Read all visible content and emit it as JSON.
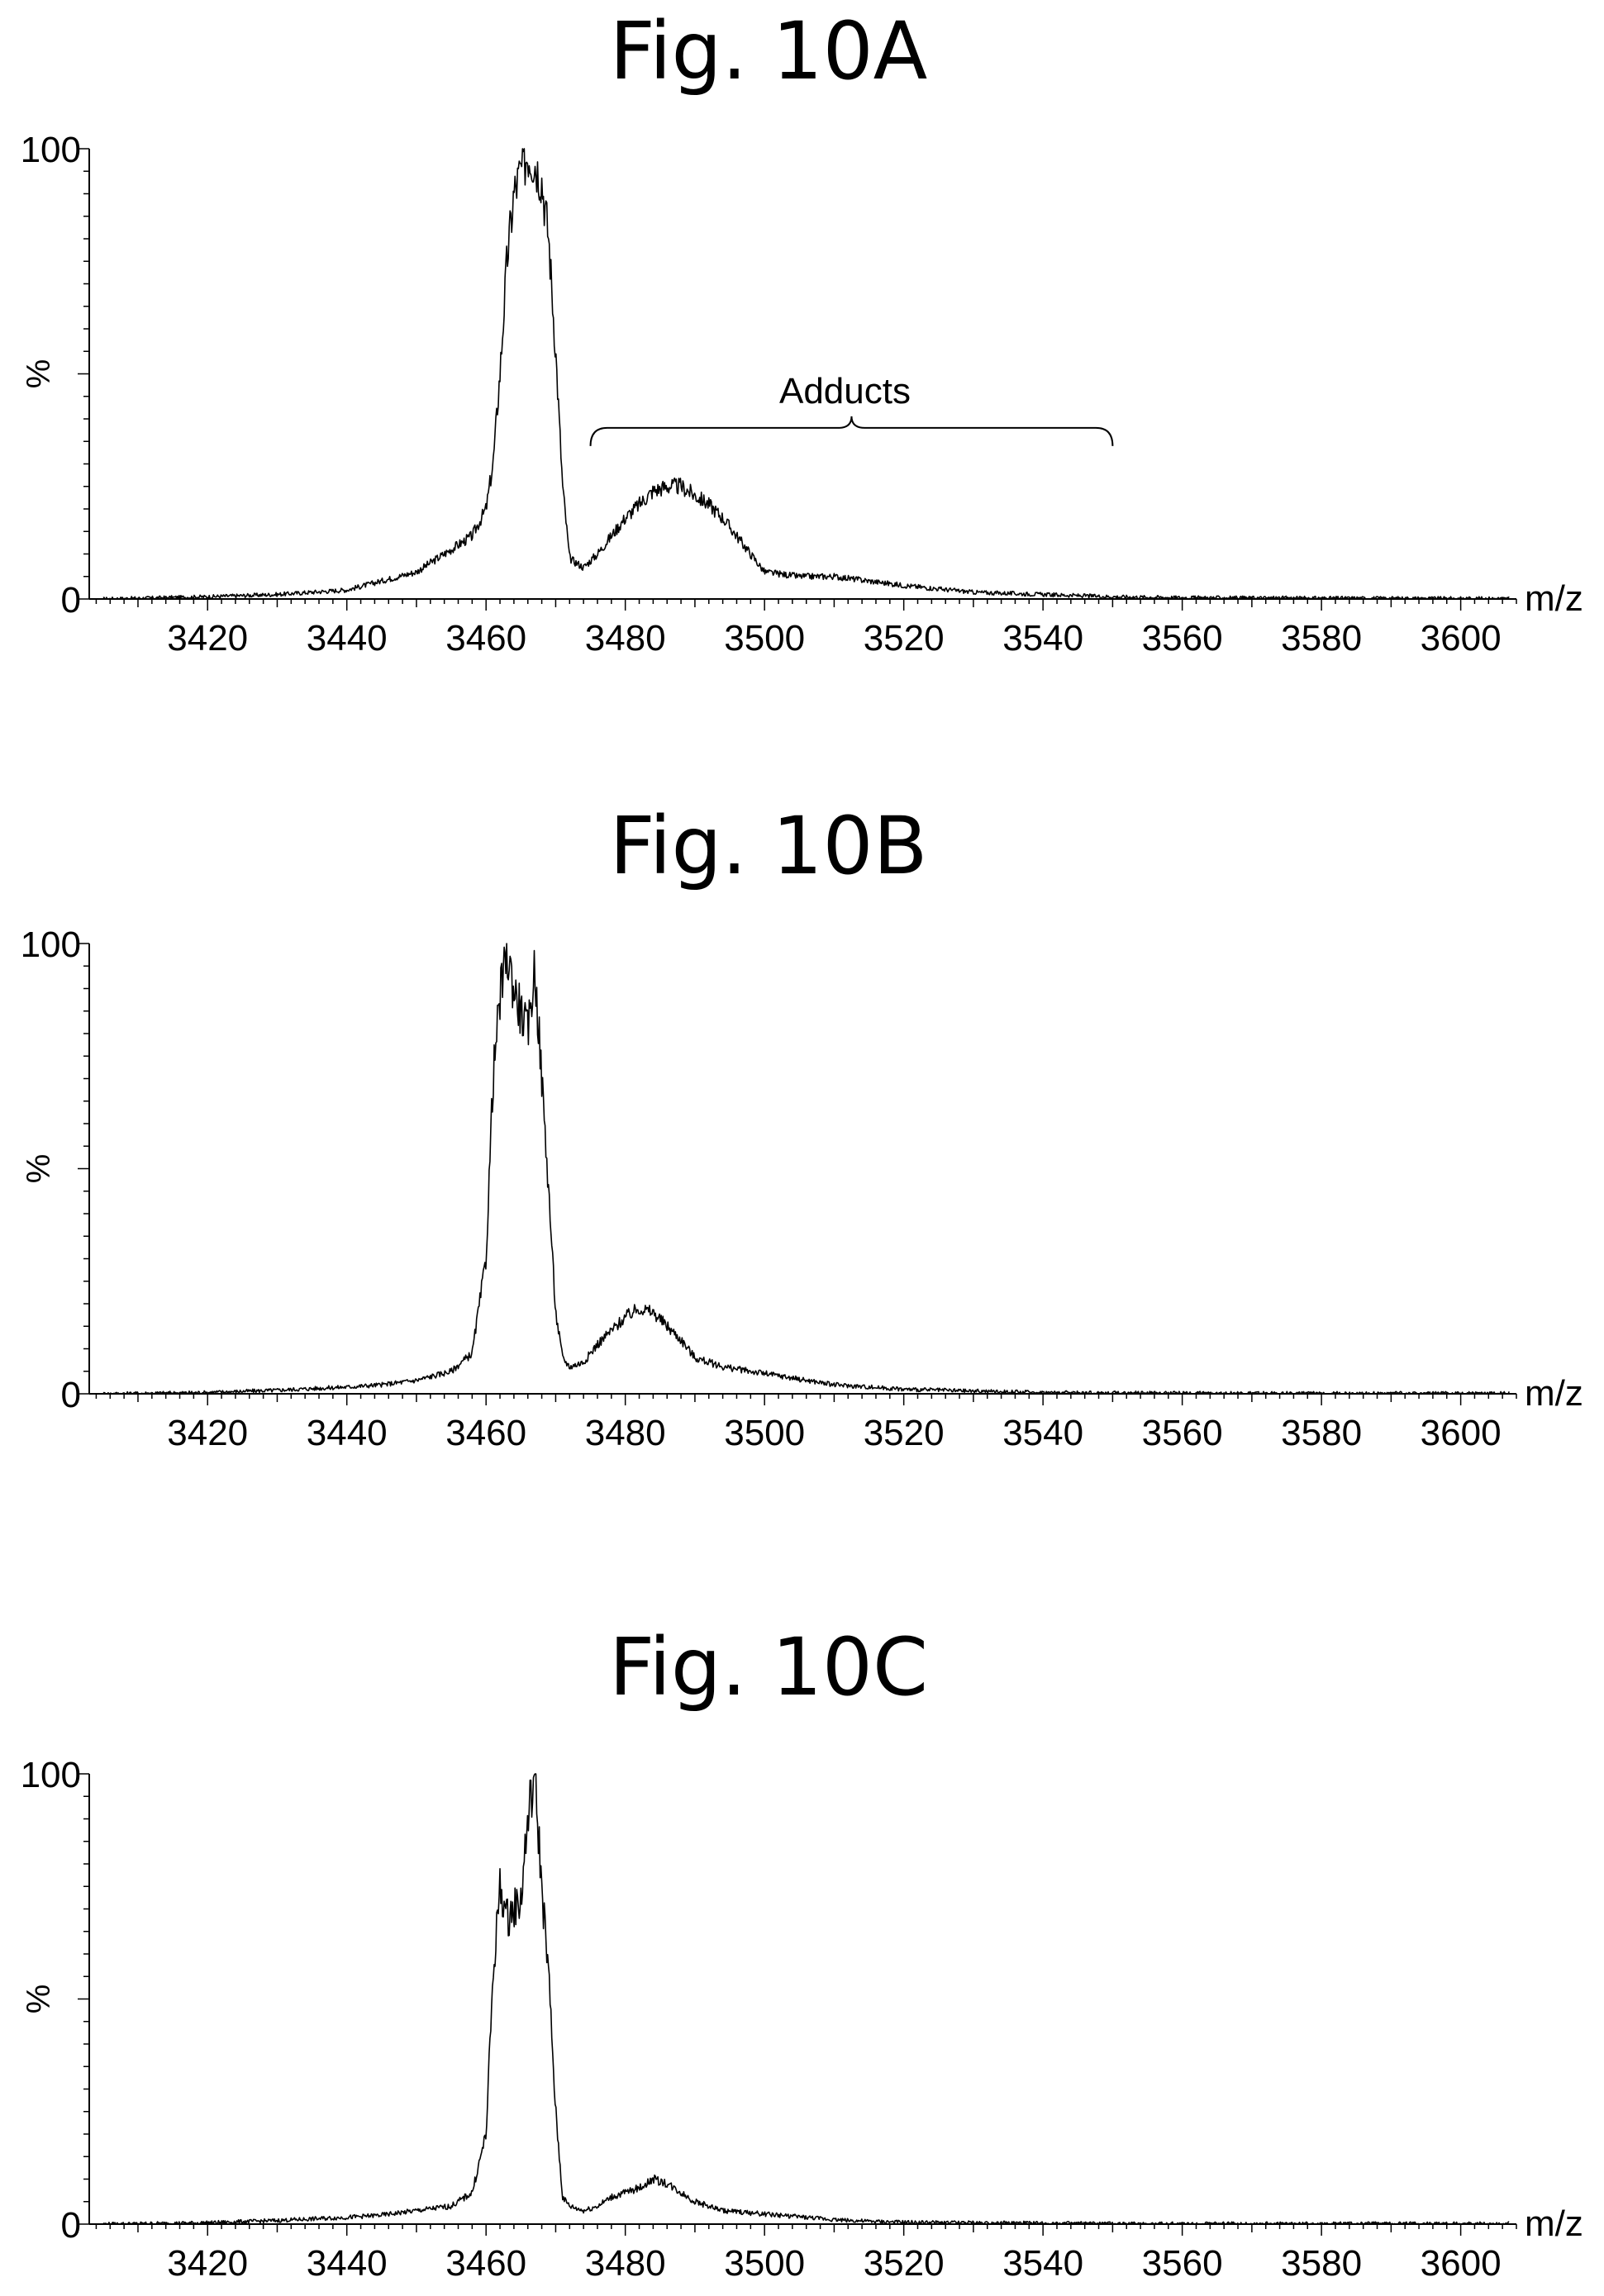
{
  "chart_data": [
    {
      "type": "line",
      "title": "Fig. 10A",
      "xlabel": "m/z",
      "ylabel": "%",
      "xlim": [
        3403,
        3608
      ],
      "ylim": [
        0,
        100
      ],
      "x_ticks": [
        3420,
        3440,
        3460,
        3480,
        3500,
        3520,
        3540,
        3560,
        3580,
        3600
      ],
      "y_ticks": [
        0,
        100
      ],
      "y_mid_label": "%",
      "grid": false,
      "annotation": {
        "text": "Adducts",
        "x_start": 3475,
        "x_end": 3550
      },
      "series": [
        {
          "x": [
            3405,
            3420,
            3430,
            3440,
            3445,
            3450,
            3453,
            3456,
            3458,
            3460,
            3461,
            3462,
            3463,
            3464,
            3465,
            3466,
            3467,
            3468,
            3469,
            3470,
            3471,
            3472,
            3474,
            3476,
            3478,
            3480,
            3482,
            3484,
            3486,
            3488,
            3490,
            3492,
            3494,
            3496,
            3498,
            3500,
            3505,
            3510,
            3515,
            3520,
            3530,
            3540,
            3550,
            3560,
            3580,
            3607
          ],
          "y": [
            0,
            0.5,
            1,
            2,
            4,
            6,
            9,
            12,
            14,
            20,
            30,
            50,
            75,
            90,
            95,
            99,
            97,
            93,
            80,
            55,
            25,
            9,
            7,
            10,
            14,
            18,
            21,
            24,
            25,
            25,
            23,
            21,
            18,
            14,
            10,
            6,
            5,
            5,
            4,
            3,
            1.5,
            1,
            0.5,
            0.3,
            0.2,
            0.1
          ]
        }
      ]
    },
    {
      "type": "line",
      "title": "Fig. 10B",
      "xlabel": "m/z",
      "ylabel": "%",
      "xlim": [
        3403,
        3608
      ],
      "ylim": [
        0,
        100
      ],
      "x_ticks": [
        3420,
        3440,
        3460,
        3480,
        3500,
        3520,
        3540,
        3560,
        3580,
        3600
      ],
      "y_ticks": [
        0,
        100
      ],
      "y_mid_label": "%",
      "grid": false,
      "series": [
        {
          "x": [
            3405,
            3420,
            3430,
            3440,
            3445,
            3450,
            3455,
            3458,
            3460,
            3461,
            3462,
            3463,
            3464,
            3465,
            3466,
            3467,
            3468,
            3469,
            3470,
            3471,
            3472,
            3474,
            3476,
            3478,
            3480,
            3482,
            3484,
            3486,
            3488,
            3490,
            3494,
            3498,
            3502,
            3506,
            3510,
            3515,
            3520,
            3530,
            3540,
            3550,
            3570,
            3607
          ],
          "y": [
            0,
            0.3,
            0.8,
            1.5,
            2,
            3,
            5,
            9,
            30,
            70,
            88,
            98,
            90,
            85,
            80,
            95,
            70,
            45,
            18,
            8,
            6,
            7,
            11,
            14,
            17,
            19,
            18,
            15,
            12,
            8,
            6,
            5,
            4,
            3,
            2,
            1.5,
            1,
            0.6,
            0.3,
            0.2,
            0.1,
            0.1
          ]
        }
      ]
    },
    {
      "type": "line",
      "title": "Fig. 10C",
      "xlabel": "m/z",
      "ylabel": "%",
      "xlim": [
        3403,
        3608
      ],
      "ylim": [
        0,
        100
      ],
      "x_ticks": [
        3420,
        3440,
        3460,
        3480,
        3500,
        3520,
        3540,
        3560,
        3580,
        3600
      ],
      "y_ticks": [
        0,
        100
      ],
      "y_mid_label": "%",
      "grid": false,
      "series": [
        {
          "x": [
            3405,
            3420,
            3430,
            3440,
            3445,
            3450,
            3455,
            3458,
            3460,
            3461,
            3462,
            3463,
            3464,
            3465,
            3466,
            3467,
            3468,
            3469,
            3470,
            3471,
            3472,
            3474,
            3476,
            3478,
            3480,
            3482,
            3484,
            3486,
            3488,
            3490,
            3494,
            3498,
            3502,
            3506,
            3510,
            3515,
            3520,
            3530,
            3540,
            3550,
            3570,
            3607
          ],
          "y": [
            0,
            0.3,
            0.8,
            1.5,
            2,
            3,
            4,
            7,
            20,
            55,
            75,
            68,
            70,
            72,
            90,
            100,
            75,
            55,
            25,
            6,
            4,
            3,
            4,
            6,
            7,
            8,
            10,
            9,
            7,
            5,
            3,
            2.5,
            2,
            1.5,
            1,
            0.6,
            0.4,
            0.3,
            0.2,
            0.1,
            0.1,
            0.1
          ]
        }
      ]
    }
  ]
}
